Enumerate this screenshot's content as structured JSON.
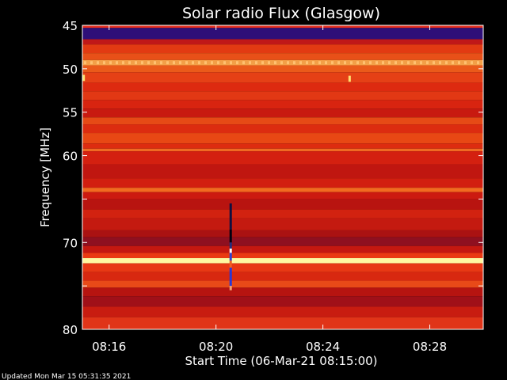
{
  "chart_data": {
    "type": "heatmap",
    "title": "Solar radio Flux (Glasgow)",
    "xlabel": "Start Time (06-Mar-21 08:15:00)",
    "ylabel": "Frequency [MHz]",
    "x_tick_labels": [
      "08:16",
      "08:20",
      "08:24",
      "08:28"
    ],
    "x_ticks_minutes_after_0815": [
      1,
      5,
      9,
      13
    ],
    "xlim_minutes_after_0815": [
      0,
      15
    ],
    "y_ticks_mhz": [
      45,
      50,
      55,
      60,
      65,
      70,
      75,
      80
    ],
    "y_tick_labels": [
      "45",
      "50",
      "55",
      "60",
      "",
      "70",
      "",
      "80"
    ],
    "ylim_mhz": [
      45,
      80
    ],
    "y_inverted": true,
    "colormap": [
      "#2a0a6e",
      "#8a1040",
      "#c80a0a",
      "#e53a0e",
      "#f06a14",
      "#ffd040",
      "#ffffc0"
    ],
    "rows": [
      {
        "f0": 45.0,
        "f1": 45.3,
        "c": "#e83020"
      },
      {
        "f0": 45.3,
        "f1": 46.6,
        "c": "#2e0f78"
      },
      {
        "f0": 46.6,
        "f1": 47.2,
        "c": "#c01818"
      },
      {
        "f0": 47.2,
        "f1": 48.2,
        "c": "#e23a12"
      },
      {
        "f0": 48.2,
        "f1": 49.0,
        "c": "#e85018"
      },
      {
        "f0": 49.0,
        "f1": 49.6,
        "c": "#f3a048"
      },
      {
        "f0": 49.6,
        "f1": 50.4,
        "c": "#ea5a1a"
      },
      {
        "f0": 50.4,
        "f1": 51.6,
        "c": "#e54016"
      },
      {
        "f0": 51.6,
        "f1": 52.6,
        "c": "#dd2a10"
      },
      {
        "f0": 52.6,
        "f1": 53.6,
        "c": "#e23814"
      },
      {
        "f0": 53.6,
        "f1": 54.6,
        "c": "#d82410"
      },
      {
        "f0": 54.6,
        "f1": 55.6,
        "c": "#c81a10"
      },
      {
        "f0": 55.6,
        "f1": 56.4,
        "c": "#e64a16"
      },
      {
        "f0": 56.4,
        "f1": 57.4,
        "c": "#dc2c10"
      },
      {
        "f0": 57.4,
        "f1": 58.6,
        "c": "#e84814"
      },
      {
        "f0": 58.6,
        "f1": 59.2,
        "c": "#dd2c10"
      },
      {
        "f0": 59.2,
        "f1": 59.5,
        "c": "#f06a22"
      },
      {
        "f0": 59.5,
        "f1": 61.0,
        "c": "#d42010"
      },
      {
        "f0": 61.0,
        "f1": 62.6,
        "c": "#c01610"
      },
      {
        "f0": 62.6,
        "f1": 63.7,
        "c": "#d21e10"
      },
      {
        "f0": 63.7,
        "f1": 64.2,
        "c": "#f26a20"
      },
      {
        "f0": 64.2,
        "f1": 65.0,
        "c": "#cc1a10"
      },
      {
        "f0": 65.0,
        "f1": 66.2,
        "c": "#b81410"
      },
      {
        "f0": 66.2,
        "f1": 67.2,
        "c": "#d22210"
      },
      {
        "f0": 67.2,
        "f1": 68.6,
        "c": "#c41a10"
      },
      {
        "f0": 68.6,
        "f1": 69.4,
        "c": "#aa1212"
      },
      {
        "f0": 69.4,
        "f1": 70.4,
        "c": "#8e1020"
      },
      {
        "f0": 70.4,
        "f1": 71.2,
        "c": "#c41810"
      },
      {
        "f0": 71.2,
        "f1": 71.8,
        "c": "#ea3a12"
      },
      {
        "f0": 71.8,
        "f1": 72.4,
        "c": "#fff8a0"
      },
      {
        "f0": 72.4,
        "f1": 73.4,
        "c": "#e83814"
      },
      {
        "f0": 73.4,
        "f1": 74.4,
        "c": "#d82810"
      },
      {
        "f0": 74.4,
        "f1": 75.2,
        "c": "#e84a18"
      },
      {
        "f0": 75.2,
        "f1": 76.2,
        "c": "#b61410"
      },
      {
        "f0": 76.2,
        "f1": 77.4,
        "c": "#a01018"
      },
      {
        "f0": 77.4,
        "f1": 78.6,
        "c": "#c81c10"
      },
      {
        "f0": 78.6,
        "f1": 80.0,
        "c": "#e03418"
      }
    ],
    "burst": {
      "t_min": 5.55,
      "f_start": 65.5,
      "f_end": 75.5
    },
    "spots": [
      {
        "t_min": 10.0,
        "f0": 50.8,
        "f1": 51.5,
        "c": "#ffe070"
      },
      {
        "t_min": 0.05,
        "f0": 50.7,
        "f1": 51.4,
        "c": "#ffe070"
      }
    ],
    "dotted_row": {
      "f": 49.3,
      "c": "#ffc070"
    }
  },
  "footer": {
    "updated": "Updated Mon Mar 15 05:31:35 2021"
  }
}
